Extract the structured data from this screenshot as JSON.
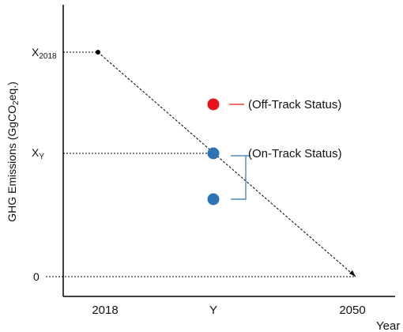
{
  "axes": {
    "y_label_main": "GHG Emissions (GgCO",
    "y_label_sub": "2",
    "y_label_tail": "eq.)",
    "x_label": "Year"
  },
  "y_ticks": {
    "x2018_main": "X",
    "x2018_sub": "2018",
    "xy_main": "X",
    "xy_sub": "Y",
    "zero": "0"
  },
  "x_ticks": {
    "t2018": "2018",
    "ty": "Y",
    "t2050": "2050"
  },
  "annotations": {
    "off_track": "(Off-Track Status)",
    "on_track": "(On-Track Status)"
  },
  "colors": {
    "off_track": "#e8141b",
    "on_track": "#2e74b5",
    "bracket": "#2e74b5",
    "line": "#000000"
  }
}
